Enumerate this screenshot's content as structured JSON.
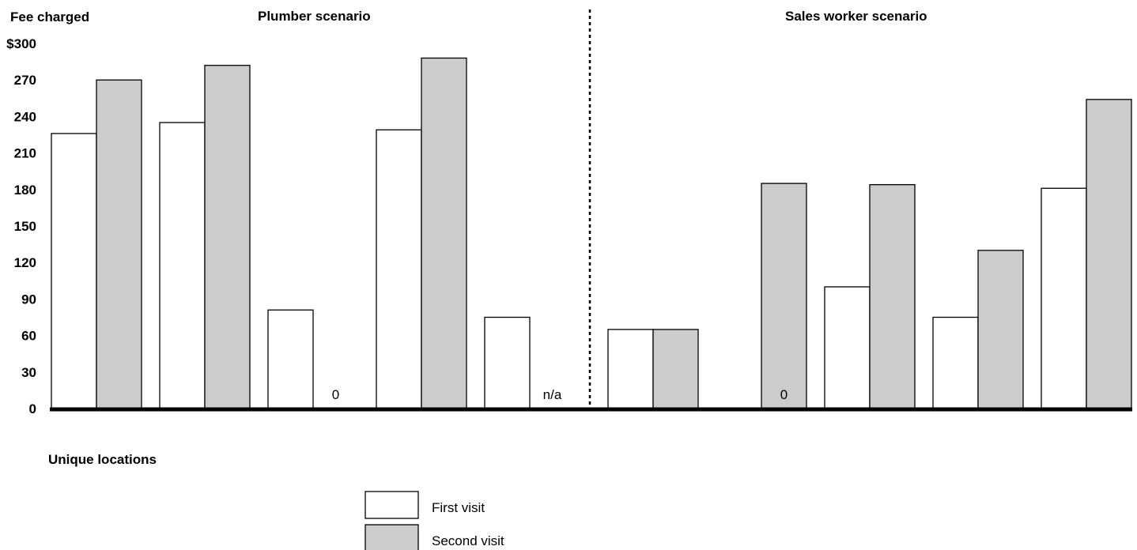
{
  "chart_data": {
    "type": "bar",
    "ylabel": "Fee charged",
    "xlabel": "Unique locations",
    "ylim": [
      0,
      300
    ],
    "y_ticks": [
      "$300",
      "270",
      "240",
      "210",
      "180",
      "150",
      "120",
      "90",
      "60",
      "30",
      "0"
    ],
    "grid": false,
    "legend_placement": "bottom-center",
    "colors": {
      "first_visit": "#ffffff",
      "second_visit": "#cccccc",
      "outline": "#000000"
    },
    "panels": [
      {
        "title": "Plumber scenario",
        "series": [
          {
            "name": "First visit",
            "values": [
              226,
              235,
              81,
              229,
              75
            ]
          },
          {
            "name": "Second visit",
            "values": [
              270,
              282,
              0,
              288,
              null
            ]
          }
        ],
        "notes": [
          "",
          "",
          "0",
          "",
          "n/a"
        ]
      },
      {
        "title": "Sales worker scenario",
        "series": [
          {
            "name": "First visit",
            "values": [
              65,
              0,
              100,
              75,
              181
            ]
          },
          {
            "name": "Second visit",
            "values": [
              65,
              185,
              184,
              130,
              254
            ]
          }
        ],
        "notes": [
          "",
          "0",
          "",
          "",
          ""
        ]
      }
    ],
    "legend": [
      {
        "label": "First visit",
        "color": "#ffffff"
      },
      {
        "label": "Second visit",
        "color": "#cccccc"
      }
    ]
  }
}
